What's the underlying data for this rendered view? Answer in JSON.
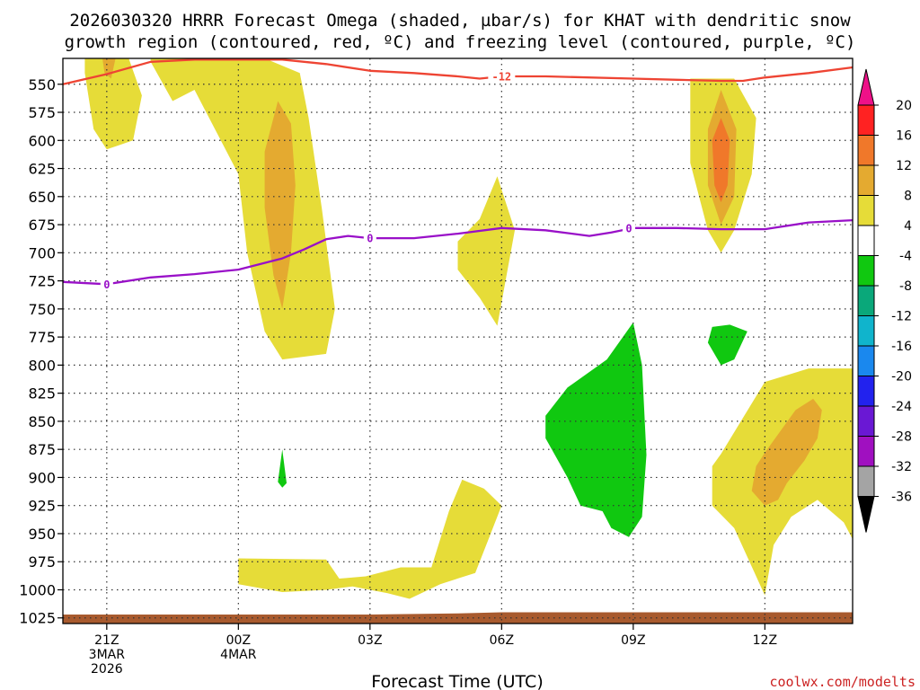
{
  "chart_data": {
    "type": "heatmap",
    "title_line1": "2026030320 HRRR Forecast Omega (shaded, µbar/s) for KHAT with dendritic snow",
    "title_line2": "growth region (contoured, red, ºC) and freezing level (contoured, purple, ºC)",
    "xlabel": "Forecast Time (UTC)",
    "credit": "coolwx.com/modelts",
    "x_range_hours": [
      -1,
      17
    ],
    "y_range_hPa": [
      527,
      1030
    ],
    "x_ticks": [
      {
        "hour": 0,
        "lines": [
          "21Z",
          "3MAR",
          "2026"
        ]
      },
      {
        "hour": 3,
        "lines": [
          "00Z",
          "4MAR"
        ]
      },
      {
        "hour": 6,
        "lines": [
          "03Z"
        ]
      },
      {
        "hour": 9,
        "lines": [
          "06Z"
        ]
      },
      {
        "hour": 12,
        "lines": [
          "09Z"
        ]
      },
      {
        "hour": 15,
        "lines": [
          "12Z"
        ]
      }
    ],
    "y_ticks": [
      550,
      575,
      600,
      625,
      650,
      675,
      700,
      725,
      750,
      775,
      800,
      825,
      850,
      875,
      900,
      925,
      950,
      975,
      1000,
      1025
    ],
    "colorbar": {
      "levels": [
        "20",
        "16",
        "12",
        "8",
        "4",
        "-4",
        "-8",
        "-12",
        "-16",
        "-20",
        "-24",
        "-28",
        "-32",
        "-36"
      ],
      "colors": [
        "#ff2222",
        "#f0782a",
        "#e4aa30",
        "#e6dc38",
        "#ffffff",
        "#10c810",
        "#0aa87a",
        "#10b4cc",
        "#1a88ee",
        "#2222ee",
        "#6a18d4",
        "#a010c0",
        "#a4a4a4"
      ],
      "top_arrow_color": "#ee1188",
      "bottom_arrow_color": "#000000"
    },
    "omega_regions": [
      {
        "level": "4 to 8",
        "color": "#e6dc38",
        "points": [
          [
            -0.5,
            527
          ],
          [
            0.5,
            527
          ],
          [
            0.8,
            560
          ],
          [
            0.6,
            600
          ],
          [
            0,
            608
          ],
          [
            -0.3,
            590
          ],
          [
            -0.5,
            540
          ]
        ]
      },
      {
        "level": "8 to 12",
        "color": "#e4aa30",
        "points": [
          [
            -0.1,
            527
          ],
          [
            0.2,
            527
          ],
          [
            0.1,
            545
          ],
          [
            -0.05,
            540
          ]
        ]
      },
      {
        "level": "4 to 8",
        "color": "#e6dc38",
        "points": [
          [
            1,
            527
          ],
          [
            3.6,
            527
          ],
          [
            4.4,
            540
          ],
          [
            4.6,
            580
          ],
          [
            4.9,
            660
          ],
          [
            5.2,
            750
          ],
          [
            5,
            790
          ],
          [
            4,
            795
          ],
          [
            3.6,
            770
          ],
          [
            3.2,
            700
          ],
          [
            3,
            630
          ],
          [
            2,
            555
          ],
          [
            1.5,
            565
          ],
          [
            1,
            530
          ]
        ]
      },
      {
        "level": "8 to 12",
        "color": "#e4aa30",
        "points": [
          [
            3.9,
            565
          ],
          [
            4.2,
            585
          ],
          [
            4.3,
            640
          ],
          [
            4.2,
            700
          ],
          [
            4,
            750
          ],
          [
            3.8,
            720
          ],
          [
            3.6,
            660
          ],
          [
            3.6,
            610
          ],
          [
            3.8,
            580
          ]
        ]
      },
      {
        "level": "4 to 8",
        "color": "#e6dc38",
        "points": [
          [
            8.9,
            632
          ],
          [
            9.3,
            680
          ],
          [
            8.9,
            765
          ],
          [
            8.5,
            740
          ],
          [
            8,
            715
          ],
          [
            8,
            690
          ],
          [
            8.5,
            670
          ]
        ]
      },
      {
        "level": "4 to 8",
        "color": "#e6dc38",
        "points": [
          [
            13.3,
            545
          ],
          [
            14.3,
            545
          ],
          [
            14.8,
            580
          ],
          [
            14.7,
            630
          ],
          [
            14.3,
            680
          ],
          [
            14,
            700
          ],
          [
            13.7,
            680
          ],
          [
            13.3,
            620
          ],
          [
            13.3,
            560
          ]
        ]
      },
      {
        "level": "8 to 12",
        "color": "#e4aa30",
        "points": [
          [
            14,
            555
          ],
          [
            14.35,
            590
          ],
          [
            14.3,
            650
          ],
          [
            14,
            675
          ],
          [
            13.7,
            640
          ],
          [
            13.7,
            590
          ]
        ]
      },
      {
        "level": "12 to 16",
        "color": "#f0782a",
        "points": [
          [
            14,
            580
          ],
          [
            14.2,
            600
          ],
          [
            14.15,
            640
          ],
          [
            14,
            655
          ],
          [
            13.85,
            640
          ],
          [
            13.8,
            600
          ]
        ]
      },
      {
        "level": "4 to 8",
        "color": "#e6dc38",
        "points": [
          [
            14,
            879
          ],
          [
            15,
            815
          ],
          [
            16,
            803
          ],
          [
            17,
            803
          ],
          [
            17,
            955
          ],
          [
            16.8,
            940
          ],
          [
            16.2,
            920
          ],
          [
            15.6,
            935
          ],
          [
            15.2,
            960
          ],
          [
            15,
            1005
          ],
          [
            14.3,
            945
          ],
          [
            13.8,
            925
          ],
          [
            13.8,
            890
          ]
        ]
      },
      {
        "level": "8 to 12",
        "color": "#e4aa30",
        "points": [
          [
            15,
            878
          ],
          [
            15.7,
            840
          ],
          [
            16.1,
            830
          ],
          [
            16.3,
            840
          ],
          [
            16.2,
            865
          ],
          [
            15.9,
            885
          ],
          [
            15.5,
            905
          ],
          [
            15.3,
            920
          ],
          [
            15,
            925
          ],
          [
            14.7,
            912
          ],
          [
            14.8,
            890
          ]
        ]
      },
      {
        "level": "4 to 8",
        "color": "#e6dc38",
        "points": [
          [
            3,
            972
          ],
          [
            5,
            973
          ],
          [
            5.3,
            990
          ],
          [
            5.9,
            988
          ],
          [
            6.7,
            980
          ],
          [
            7.4,
            980
          ],
          [
            7.8,
            930
          ],
          [
            8.1,
            902
          ],
          [
            8.6,
            910
          ],
          [
            9,
            925
          ],
          [
            8.7,
            955
          ],
          [
            8.4,
            985
          ],
          [
            7.6,
            995
          ],
          [
            6.9,
            1008
          ],
          [
            6.4,
            1003
          ],
          [
            5.6,
            997
          ],
          [
            5,
            1000
          ],
          [
            4,
            1002
          ],
          [
            3,
            995
          ]
        ]
      },
      {
        "level": "-4 to -8",
        "color": "#10c810",
        "points": [
          [
            12,
            762
          ],
          [
            12.2,
            800
          ],
          [
            12.3,
            880
          ],
          [
            12.2,
            935
          ],
          [
            11.9,
            953
          ],
          [
            11.5,
            945
          ],
          [
            11.3,
            930
          ],
          [
            10.8,
            925
          ],
          [
            10.5,
            900
          ],
          [
            10,
            865
          ],
          [
            10,
            845
          ],
          [
            10.5,
            820
          ],
          [
            11.4,
            795
          ]
        ]
      },
      {
        "level": "-4 to -8",
        "color": "#10c810",
        "points": [
          [
            13.8,
            766
          ],
          [
            14.2,
            764
          ],
          [
            14.6,
            770
          ],
          [
            14.3,
            795
          ],
          [
            14,
            800
          ],
          [
            13.7,
            780
          ]
        ]
      },
      {
        "level": "-4 to -8",
        "color": "#10c810",
        "points": [
          [
            4,
            875
          ],
          [
            4.1,
            905
          ],
          [
            4,
            909
          ],
          [
            3.9,
            904
          ]
        ]
      }
    ],
    "surface_color": "#a85a2e",
    "surface_points": [
      [
        -1,
        1022
      ],
      [
        5,
        1022
      ],
      [
        6,
        1022
      ],
      [
        8,
        1021
      ],
      [
        9,
        1020
      ],
      [
        12,
        1020
      ],
      [
        17,
        1020
      ],
      [
        17,
        1030
      ],
      [
        -1,
        1030
      ]
    ],
    "dendritic_contour": {
      "value": "-12",
      "color": "#ee4433",
      "points": [
        [
          -1,
          550
        ],
        [
          0,
          541
        ],
        [
          1,
          530
        ],
        [
          2,
          528
        ],
        [
          3,
          528
        ],
        [
          4,
          528
        ],
        [
          5,
          532
        ],
        [
          6,
          538
        ],
        [
          7,
          540
        ],
        [
          8,
          543
        ],
        [
          8.5,
          545
        ],
        [
          9,
          543
        ],
        [
          10,
          543
        ],
        [
          12,
          545
        ],
        [
          13,
          546
        ],
        [
          14,
          547
        ],
        [
          14.5,
          547
        ],
        [
          15,
          544
        ],
        [
          16,
          540
        ],
        [
          17,
          535
        ]
      ],
      "label_at": [
        9,
        543
      ]
    },
    "freezing_contour": {
      "value": "0",
      "color": "#9910c8",
      "points": [
        [
          -1,
          726
        ],
        [
          0,
          728
        ],
        [
          1,
          722
        ],
        [
          2,
          719
        ],
        [
          3,
          715
        ],
        [
          4,
          705
        ],
        [
          4.5,
          697
        ],
        [
          5,
          688
        ],
        [
          5.5,
          685
        ],
        [
          6,
          687
        ],
        [
          7,
          687
        ],
        [
          8,
          683
        ],
        [
          9,
          678
        ],
        [
          10,
          680
        ],
        [
          11,
          685
        ],
        [
          11.5,
          682
        ],
        [
          12,
          678
        ],
        [
          13,
          678
        ],
        [
          14,
          679
        ],
        [
          15,
          679
        ],
        [
          16,
          673
        ],
        [
          17,
          671
        ]
      ],
      "label_positions": [
        [
          0,
          728
        ],
        [
          6,
          687
        ],
        [
          11.9,
          678
        ]
      ]
    }
  }
}
